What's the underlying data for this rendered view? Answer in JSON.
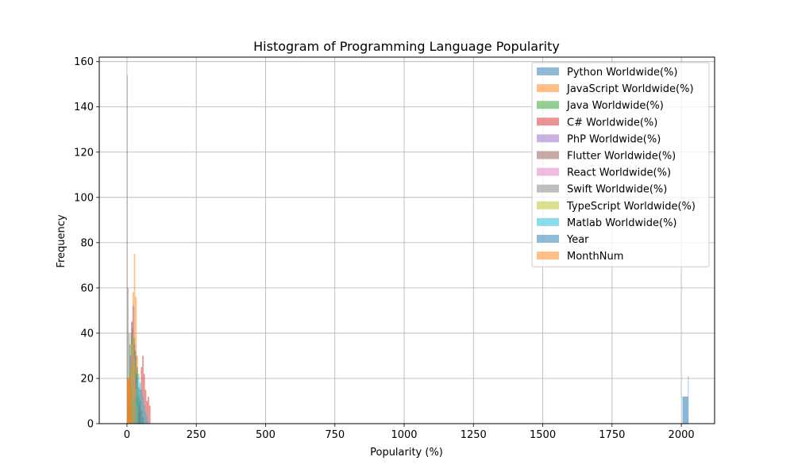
{
  "chart_data": {
    "type": "bar",
    "title": "Histogram of Programming Language Popularity",
    "xlabel": "Popularity (%)",
    "ylabel": "Frequency",
    "xlim": [
      -100,
      2120
    ],
    "ylim": [
      0,
      162
    ],
    "xticks": [
      0,
      250,
      500,
      750,
      1000,
      1250,
      1500,
      1750,
      2000
    ],
    "yticks": [
      0,
      20,
      40,
      60,
      80,
      100,
      120,
      140,
      160
    ],
    "grid": true,
    "legend_position": "top-right",
    "series": [
      {
        "name": "Python Worldwide(%)",
        "color": "#1f77b4",
        "bins": [
          [
            20,
            25,
            12
          ],
          [
            25,
            30,
            18
          ],
          [
            30,
            35,
            30
          ],
          [
            35,
            40,
            25
          ],
          [
            40,
            45,
            16
          ],
          [
            45,
            50,
            10
          ],
          [
            50,
            55,
            6
          ],
          [
            55,
            60,
            3
          ]
        ]
      },
      {
        "name": "JavaScript Worldwide(%)",
        "color": "#ff7f0e",
        "bins": [
          [
            5,
            10,
            8
          ],
          [
            10,
            15,
            22
          ],
          [
            15,
            20,
            45
          ],
          [
            20,
            25,
            58
          ],
          [
            25,
            30,
            75
          ],
          [
            30,
            35,
            56
          ],
          [
            35,
            40,
            30
          ],
          [
            40,
            45,
            12
          ]
        ]
      },
      {
        "name": "Java Worldwide(%)",
        "color": "#2ca02c",
        "bins": [
          [
            8,
            13,
            35
          ],
          [
            13,
            18,
            40
          ],
          [
            18,
            23,
            42
          ],
          [
            23,
            28,
            38
          ],
          [
            28,
            33,
            32
          ],
          [
            33,
            38,
            22
          ],
          [
            38,
            43,
            12
          ],
          [
            43,
            48,
            6
          ]
        ]
      },
      {
        "name": "C# Worldwide(%)",
        "color": "#d62728",
        "bins": [
          [
            40,
            45,
            8
          ],
          [
            45,
            50,
            15
          ],
          [
            50,
            55,
            25
          ],
          [
            55,
            60,
            30
          ],
          [
            60,
            65,
            22
          ],
          [
            65,
            70,
            15
          ],
          [
            70,
            75,
            10
          ],
          [
            75,
            80,
            12
          ],
          [
            80,
            85,
            8
          ]
        ]
      },
      {
        "name": "PhP Worldwide(%)",
        "color": "#9467bd",
        "bins": [
          [
            5,
            10,
            12
          ],
          [
            10,
            15,
            30
          ],
          [
            15,
            20,
            45
          ],
          [
            20,
            25,
            52
          ],
          [
            25,
            30,
            35
          ],
          [
            30,
            35,
            20
          ],
          [
            35,
            40,
            10
          ]
        ]
      },
      {
        "name": "Flutter Worldwide(%)",
        "color": "#8c564b",
        "bins": [
          [
            0,
            2,
            154
          ],
          [
            2,
            4,
            20
          ],
          [
            4,
            6,
            12
          ],
          [
            6,
            8,
            8
          ],
          [
            8,
            10,
            5
          ]
        ]
      },
      {
        "name": "React Worldwide(%)",
        "color": "#e377c2",
        "bins": [
          [
            10,
            15,
            20
          ],
          [
            15,
            20,
            35
          ],
          [
            20,
            25,
            42
          ],
          [
            25,
            30,
            30
          ],
          [
            30,
            35,
            18
          ],
          [
            35,
            40,
            8
          ]
        ]
      },
      {
        "name": "Swift Worldwide(%)",
        "color": "#7f7f7f",
        "bins": [
          [
            2,
            6,
            60
          ],
          [
            6,
            10,
            40
          ],
          [
            10,
            14,
            25
          ],
          [
            14,
            18,
            15
          ],
          [
            18,
            22,
            10
          ]
        ]
      },
      {
        "name": "TypeScript Worldwide(%)",
        "color": "#bcbd22",
        "bins": [
          [
            5,
            10,
            15
          ],
          [
            10,
            15,
            25
          ],
          [
            15,
            20,
            35
          ],
          [
            20,
            25,
            40
          ],
          [
            25,
            30,
            28
          ],
          [
            30,
            35,
            15
          ],
          [
            35,
            40,
            8
          ]
        ]
      },
      {
        "name": "Matlab Worldwide(%)",
        "color": "#17becf",
        "bins": [
          [
            30,
            35,
            12
          ],
          [
            35,
            40,
            20
          ],
          [
            40,
            45,
            22
          ],
          [
            45,
            50,
            18
          ],
          [
            50,
            55,
            15
          ],
          [
            55,
            60,
            12
          ],
          [
            60,
            65,
            8
          ],
          [
            65,
            70,
            5
          ],
          [
            70,
            75,
            3
          ]
        ]
      },
      {
        "name": "Year",
        "color": "#1f77b4",
        "bins": [
          [
            2004,
            2006,
            12
          ],
          [
            2006,
            2008,
            12
          ],
          [
            2008,
            2010,
            12
          ],
          [
            2010,
            2012,
            12
          ],
          [
            2012,
            2014,
            12
          ],
          [
            2014,
            2016,
            12
          ],
          [
            2016,
            2018,
            12
          ],
          [
            2018,
            2020,
            12
          ],
          [
            2020,
            2022,
            12
          ],
          [
            2022,
            2024,
            12
          ],
          [
            2024,
            2026,
            21
          ]
        ]
      },
      {
        "name": "MonthNum",
        "color": "#ff7f0e",
        "bins": [
          [
            1,
            2,
            20
          ],
          [
            2,
            3,
            20
          ],
          [
            3,
            4,
            20
          ],
          [
            4,
            5,
            20
          ],
          [
            5,
            6,
            20
          ],
          [
            6,
            7,
            20
          ],
          [
            7,
            8,
            20
          ],
          [
            8,
            9,
            20
          ],
          [
            9,
            10,
            20
          ],
          [
            10,
            11,
            20
          ],
          [
            11,
            12,
            20
          ]
        ]
      }
    ]
  }
}
